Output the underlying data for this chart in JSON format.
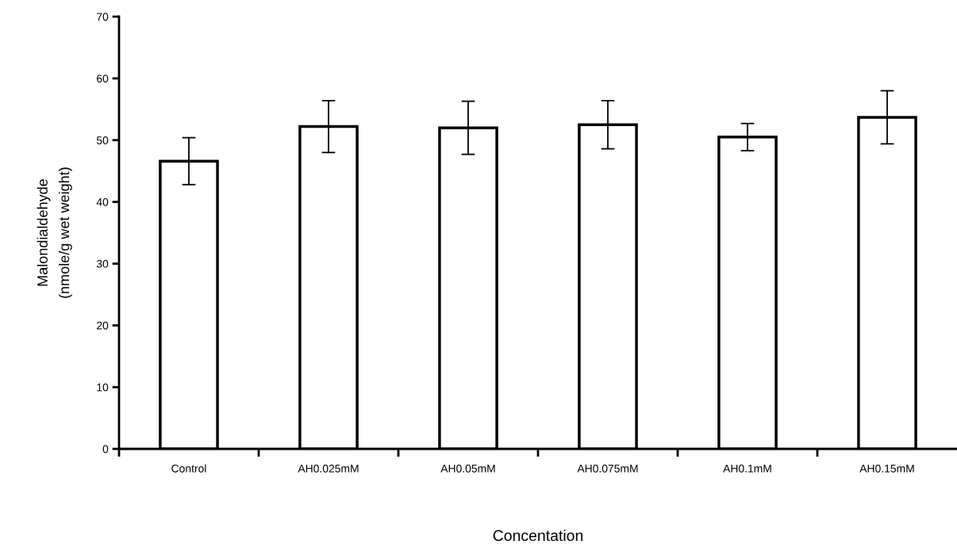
{
  "chart_data": {
    "type": "bar",
    "xlabel": "Concentation",
    "ylabel": "Malondialdehyde\n(nmole/g wet weight)",
    "categories": [
      "Control",
      "AH0.025mM",
      "AH0.05mM",
      "AH0.075mM",
      "AH0.1mM",
      "AH0.15mM"
    ],
    "values": [
      46.6,
      52.2,
      52.0,
      52.5,
      50.5,
      53.7
    ],
    "errors": [
      3.8,
      4.2,
      4.3,
      3.9,
      2.2,
      4.3
    ],
    "color": "#ffffff",
    "ylim": [
      0,
      70
    ],
    "yticks": [
      0,
      10,
      20,
      30,
      40,
      50,
      60,
      70
    ],
    "grid": false,
    "legend": false
  }
}
